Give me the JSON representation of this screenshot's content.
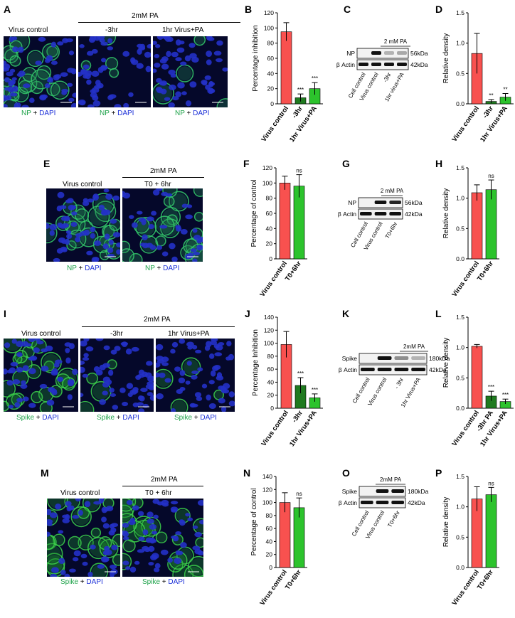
{
  "panels": {
    "A": {
      "letter": "A",
      "treat_header": "2mM PA",
      "columns": [
        "Virus control",
        "-3hr",
        "1hr Virus+PA"
      ],
      "stain": "NP",
      "plus": "+",
      "dapi": "DAPI"
    },
    "E": {
      "letter": "E",
      "treat_header": "2mM PA",
      "columns": [
        "Virus control",
        "T0 + 6hr"
      ],
      "stain": "NP",
      "plus": "+",
      "dapi": "DAPI"
    },
    "I": {
      "letter": "I",
      "treat_header": "2mM PA",
      "columns": [
        "Virus control",
        "-3hr",
        "1hr Virus+PA"
      ],
      "stain": "Spike",
      "plus": "+",
      "dapi": "DAPI"
    },
    "M": {
      "letter": "M",
      "treat_header": "2mM PA",
      "columns": [
        "Virus control",
        "T0 + 6hr"
      ],
      "stain": "Spike",
      "plus": "+",
      "dapi": "DAPI"
    },
    "C": {
      "letter": "C",
      "header": "2 mM PA",
      "bands": [
        "NP",
        "β Actin"
      ],
      "sizes": [
        "56kDa",
        "42kDa"
      ],
      "lanes": [
        "Cell control",
        "Virus control",
        "-3hr",
        "1hr virus+PA"
      ]
    },
    "G": {
      "letter": "G",
      "header": "2 mM PA",
      "bands": [
        "NP",
        "β Actin"
      ],
      "sizes": [
        "56kDa",
        "42kDa"
      ],
      "lanes": [
        "Cell control",
        "Virus control",
        "T0+6hr"
      ]
    },
    "K": {
      "letter": "K",
      "header": "2mM PA",
      "bands": [
        "Spike",
        "β Actin"
      ],
      "sizes": [
        "180kDa",
        "42kDa"
      ],
      "lanes": [
        "Cell control",
        "Virus control",
        "- 3hr",
        "1hr Virus+PA"
      ]
    },
    "O": {
      "letter": "O",
      "header": "2mM PA",
      "bands": [
        "Spike",
        "β Actin"
      ],
      "sizes": [
        "180kDa",
        "42kDa"
      ],
      "lanes": [
        "Cell control",
        "Virus control",
        "T0+6hr"
      ]
    }
  },
  "colors": {
    "red": "#f8514f",
    "dark_green": "#1f7a1f",
    "green": "#2cc32c",
    "stain_green": "#1fa34a",
    "dapi_blue": "#1b2fd8"
  },
  "chart_data": [
    {
      "id": "B",
      "type": "bar",
      "ylabel": "Percentage inhibition",
      "ylim": [
        0,
        120
      ],
      "yticks": [
        0,
        20,
        40,
        60,
        80,
        100,
        120
      ],
      "categories": [
        "Virus control",
        "-3hr",
        "1hr Virus+PA"
      ],
      "values": [
        95,
        8,
        20
      ],
      "errors": [
        12,
        5,
        8
      ],
      "colors": [
        "#f8514f",
        "#1f7a1f",
        "#2cc32c"
      ],
      "sig": [
        "",
        "***",
        "***"
      ]
    },
    {
      "id": "D",
      "type": "bar",
      "ylabel": "Relative density",
      "ylim": [
        0,
        1.5
      ],
      "yticks": [
        0.0,
        0.5,
        1.0,
        1.5
      ],
      "categories": [
        "Virus control",
        "-3hr",
        "1hr Virus+PA"
      ],
      "values": [
        0.83,
        0.04,
        0.11
      ],
      "errors": [
        0.33,
        0.03,
        0.06
      ],
      "colors": [
        "#f8514f",
        "#1f7a1f",
        "#2cc32c"
      ],
      "sig": [
        "",
        "**",
        "**"
      ]
    },
    {
      "id": "F",
      "type": "bar",
      "ylabel": "Percentage of control",
      "ylim": [
        0,
        120
      ],
      "yticks": [
        0,
        20,
        40,
        60,
        80,
        100,
        120
      ],
      "categories": [
        "Virus control",
        "T0+6hr"
      ],
      "values": [
        100,
        96
      ],
      "errors": [
        9,
        15
      ],
      "colors": [
        "#f8514f",
        "#2cc32c"
      ],
      "sig": [
        "",
        "ns"
      ]
    },
    {
      "id": "H",
      "type": "bar",
      "ylabel": "Relative density",
      "ylim": [
        0,
        1.5
      ],
      "yticks": [
        0.0,
        0.5,
        1.0,
        1.5
      ],
      "categories": [
        "Virus control",
        "T0+6hr"
      ],
      "values": [
        1.09,
        1.14
      ],
      "errors": [
        0.13,
        0.16
      ],
      "colors": [
        "#f8514f",
        "#2cc32c"
      ],
      "sig": [
        "",
        "ns"
      ]
    },
    {
      "id": "J",
      "type": "bar",
      "ylabel": "Percentage Inhibition",
      "ylim": [
        0,
        140
      ],
      "yticks": [
        0,
        20,
        40,
        60,
        80,
        100,
        120,
        140
      ],
      "categories": [
        "Virus control",
        "-3hr",
        "1hr Virus+PA"
      ],
      "values": [
        98,
        35,
        16
      ],
      "errors": [
        20,
        12,
        6
      ],
      "colors": [
        "#f8514f",
        "#1f7a1f",
        "#2cc32c"
      ],
      "sig": [
        "",
        "***",
        "***"
      ]
    },
    {
      "id": "L",
      "type": "bar",
      "ylabel": "Relative density",
      "ylim": [
        0,
        1.5
      ],
      "yticks": [
        0.0,
        0.5,
        1.0,
        1.5
      ],
      "categories": [
        "Virus control",
        "-3hr PA",
        "1hr Virus+PA"
      ],
      "values": [
        1.02,
        0.2,
        0.11
      ],
      "errors": [
        0.03,
        0.08,
        0.04
      ],
      "colors": [
        "#f8514f",
        "#1f7a1f",
        "#2cc32c"
      ],
      "sig": [
        "",
        "***",
        "***"
      ]
    },
    {
      "id": "N",
      "type": "bar",
      "ylabel": "Percentage of control",
      "ylim": [
        0,
        140
      ],
      "yticks": [
        0,
        20,
        40,
        60,
        80,
        100,
        120,
        140
      ],
      "categories": [
        "Virus control",
        "T0+6hr"
      ],
      "values": [
        100,
        92
      ],
      "errors": [
        15,
        15
      ],
      "colors": [
        "#f8514f",
        "#2cc32c"
      ],
      "sig": [
        "",
        "ns"
      ]
    },
    {
      "id": "P",
      "type": "bar",
      "ylabel": "Relative density",
      "ylim": [
        0,
        1.5
      ],
      "yticks": [
        0.0,
        0.5,
        1.0,
        1.5
      ],
      "categories": [
        "Virus control",
        "T0+6hr"
      ],
      "values": [
        1.13,
        1.2
      ],
      "errors": [
        0.2,
        0.12
      ],
      "colors": [
        "#f8514f",
        "#2cc32c"
      ],
      "sig": [
        "",
        "ns"
      ]
    }
  ]
}
